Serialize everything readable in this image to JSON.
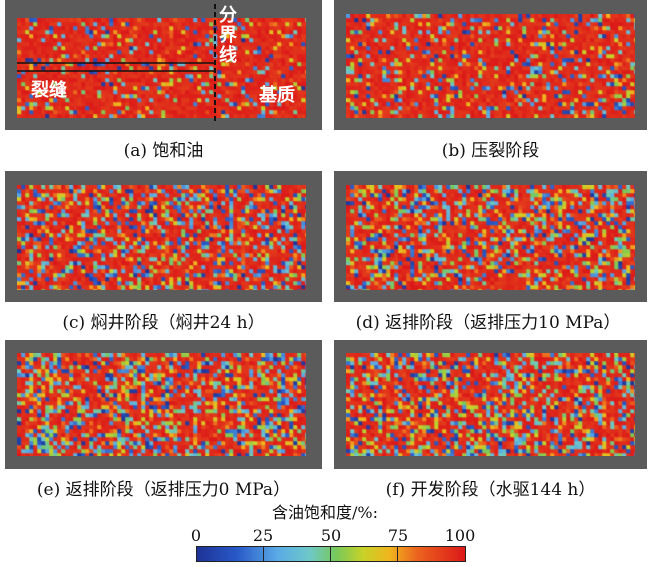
{
  "panels": [
    {
      "caption": "(a) 饱和油",
      "seed": 11,
      "red": 0.8
    },
    {
      "caption": "(b) 压裂阶段",
      "seed": 23,
      "red": 0.72
    },
    {
      "caption": "(c) 焖井阶段（焖井24 h）",
      "seed": 37,
      "red": 0.55
    },
    {
      "caption": "(d) 返排阶段（返排压力10 MPa）",
      "seed": 41,
      "red": 0.52
    },
    {
      "caption": "(e) 返排阶段（返排压力0 MPa）",
      "seed": 53,
      "red": 0.48
    },
    {
      "caption": "(f) 开发阶段（水驱144 h）",
      "seed": 67,
      "red": 0.5
    }
  ],
  "annotations": {
    "boundary": "分界线",
    "fracture": "裂缝",
    "matrix": "基质"
  },
  "legend": {
    "title": "含油饱和度/%:",
    "ticks": [
      "0",
      "25",
      "50",
      "75",
      "100"
    ]
  },
  "colors": {
    "frame": "#5b5b5b",
    "high": "#e3201b",
    "low": "#1e3f9a"
  }
}
